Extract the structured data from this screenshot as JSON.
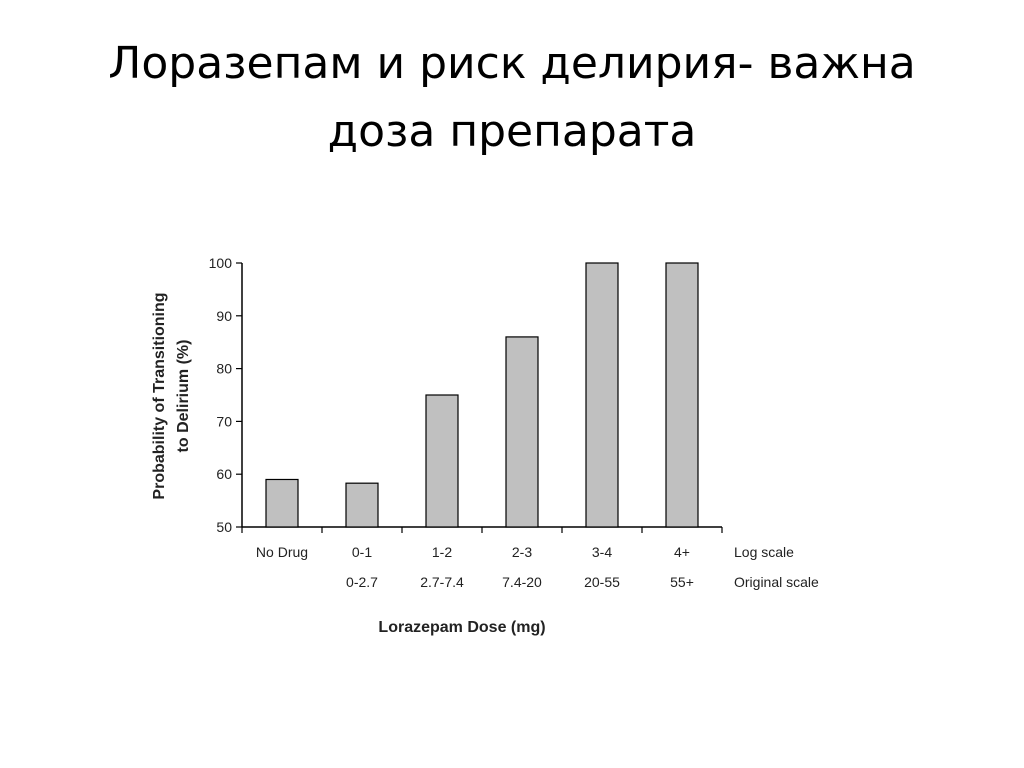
{
  "slide": {
    "title_lines": [
      "Лоразепам и риск делирия- важна",
      "доза препарата"
    ]
  },
  "chart_data": {
    "type": "bar",
    "categories": [
      "No Drug",
      "0-1",
      "1-2",
      "2-3",
      "3-4",
      "4+"
    ],
    "categories_secondary": [
      "",
      "0-2.7",
      "2.7-7.4",
      "7.4-20",
      "20-55",
      "55+"
    ],
    "values": [
      59,
      58.3,
      75,
      86,
      100,
      100
    ],
    "row_labels": [
      "Log scale",
      "Original scale"
    ],
    "xlabel": "Lorazepam Dose (mg)",
    "ylabel_lines": [
      "Probability of Transitioning",
      "to Delirium (%)"
    ],
    "ylim": [
      50,
      100
    ],
    "yticks": [
      50,
      60,
      70,
      80,
      90,
      100
    ],
    "grid": false,
    "bar_fill": "#c0c0c0",
    "bar_stroke": "#000000"
  }
}
